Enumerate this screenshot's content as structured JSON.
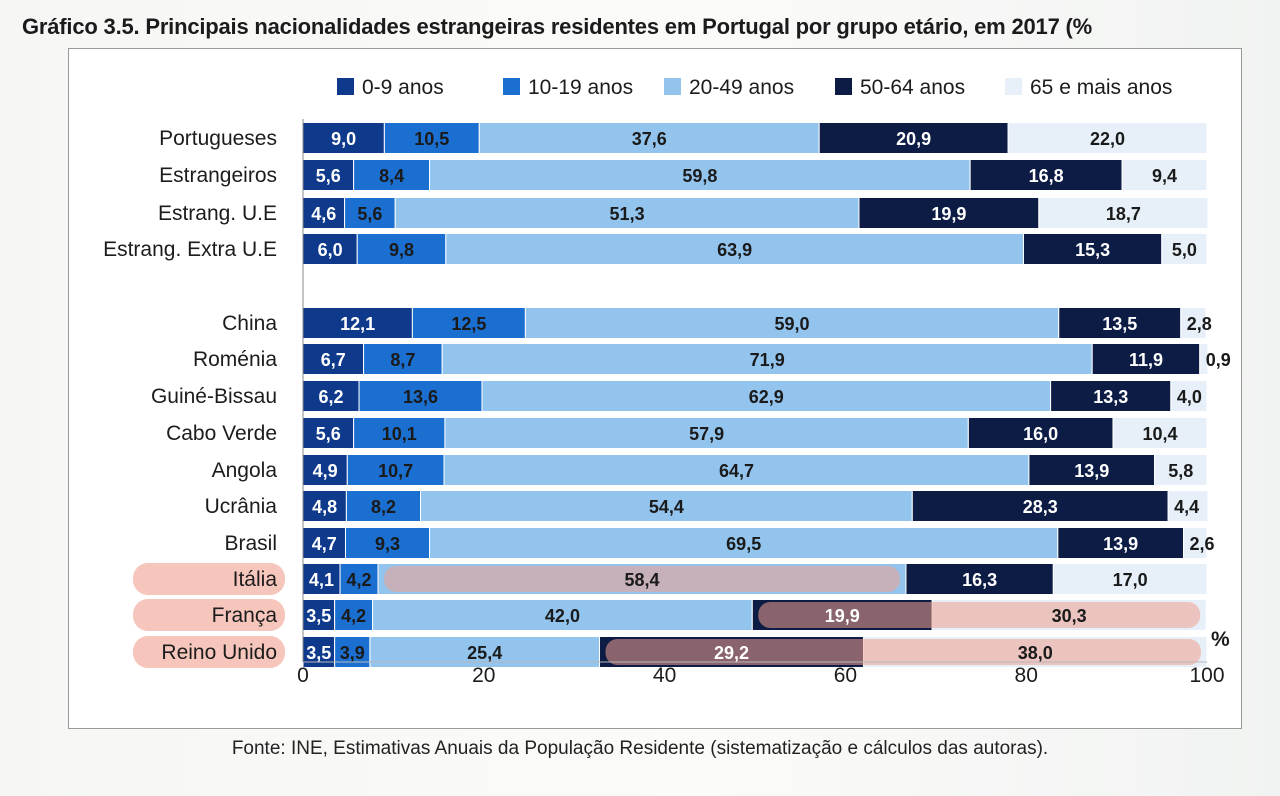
{
  "title": "Gráfico 3.5. Principais nacionalidades estrangeiras residentes em Portugal por grupo etário, em 2017 (%",
  "source": "Fonte: INE, Estimativas Anuais da População Residente (sistematização e cálculos das autoras).",
  "unit_label": "%",
  "colors": {
    "series": [
      "#0f3a8c",
      "#1a6fd0",
      "#92c4ee",
      "#0c1c44",
      "#e7f0f9"
    ],
    "value_text_light": "#ffffff",
    "value_text_dark": "#1a1a1a",
    "highlight": "#f0a090"
  },
  "chart_data": {
    "type": "bar",
    "orientation": "horizontal",
    "stacked": true,
    "xlim": [
      0,
      100
    ],
    "x_ticks": [
      "0",
      "20",
      "40",
      "60",
      "80",
      "100"
    ],
    "legend_position": "top",
    "categories": [
      "Portugueses",
      "Estrangeiros",
      "Estrang. U.E",
      "Estrang. Extra U.E",
      "China",
      "Roménia",
      "Guiné-Bissau",
      "Cabo Verde",
      "Angola",
      "Ucrânia",
      "Brasil",
      "Itália",
      "França",
      "Reino Unido"
    ],
    "value_labels_text": [
      [
        "9,0",
        "10,5",
        "37,6",
        "20,9",
        "22,0"
      ],
      [
        "5,6",
        "8,4",
        "59,8",
        "16,8",
        "9,4"
      ],
      [
        "4,6",
        "5,6",
        "51,3",
        "19,9",
        "18,7"
      ],
      [
        "6,0",
        "9,8",
        "63,9",
        "15,3",
        "5,0"
      ],
      [
        "12,1",
        "12,5",
        "59,0",
        "13,5",
        "2,8"
      ],
      [
        "6,7",
        "8,7",
        "71,9",
        "11,9",
        "0,9"
      ],
      [
        "6,2",
        "13,6",
        "62,9",
        "13,3",
        "4,0"
      ],
      [
        "5,6",
        "10,1",
        "57,9",
        "16,0",
        "10,4"
      ],
      [
        "4,9",
        "10,7",
        "64,7",
        "13,9",
        "5,8"
      ],
      [
        "4,8",
        "8,2",
        "54,4",
        "28,3",
        "4,4"
      ],
      [
        "4,7",
        "9,3",
        "69,5",
        "13,9",
        "2,6"
      ],
      [
        "4,1",
        "4,2",
        "58,4",
        "16,3",
        "17,0"
      ],
      [
        "3,5",
        "4,2",
        "42,0",
        "19,9",
        "30,3"
      ],
      [
        "3,5",
        "3,9",
        "25,4",
        "29,2",
        "38,0"
      ]
    ],
    "series": [
      {
        "name": "0-9 anos",
        "values": [
          9.0,
          5.6,
          4.6,
          6.0,
          12.1,
          6.7,
          6.2,
          5.6,
          4.9,
          4.8,
          4.7,
          4.1,
          3.5,
          3.5
        ]
      },
      {
        "name": "10-19 anos",
        "values": [
          10.5,
          8.4,
          5.6,
          9.8,
          12.5,
          8.7,
          13.6,
          10.1,
          10.7,
          8.2,
          9.3,
          4.2,
          4.2,
          3.9
        ]
      },
      {
        "name": "20-49 anos",
        "values": [
          37.6,
          59.8,
          51.3,
          63.9,
          59.0,
          71.9,
          62.9,
          57.9,
          64.7,
          54.4,
          69.5,
          58.4,
          42.0,
          25.4
        ]
      },
      {
        "name": "50-64 anos",
        "values": [
          20.9,
          16.8,
          19.9,
          15.3,
          13.5,
          11.9,
          13.3,
          16.0,
          13.9,
          28.3,
          13.9,
          16.3,
          19.9,
          29.2
        ]
      },
      {
        "name": "65 e mais anos",
        "values": [
          22.0,
          9.4,
          18.7,
          5.0,
          2.8,
          0.9,
          4.0,
          10.4,
          5.8,
          4.4,
          2.6,
          17.0,
          30.3,
          38.0
        ]
      }
    ],
    "highlighted_categories": [
      "Itália",
      "França",
      "Reino Unido"
    ],
    "highlighted_segments": [
      {
        "category": "Itália",
        "series": [
          "20-49 anos"
        ]
      },
      {
        "category": "França",
        "series": [
          "50-64 anos",
          "65 e mais anos"
        ]
      },
      {
        "category": "Reino Unido",
        "series": [
          "50-64 anos",
          "65 e mais anos"
        ]
      }
    ]
  }
}
